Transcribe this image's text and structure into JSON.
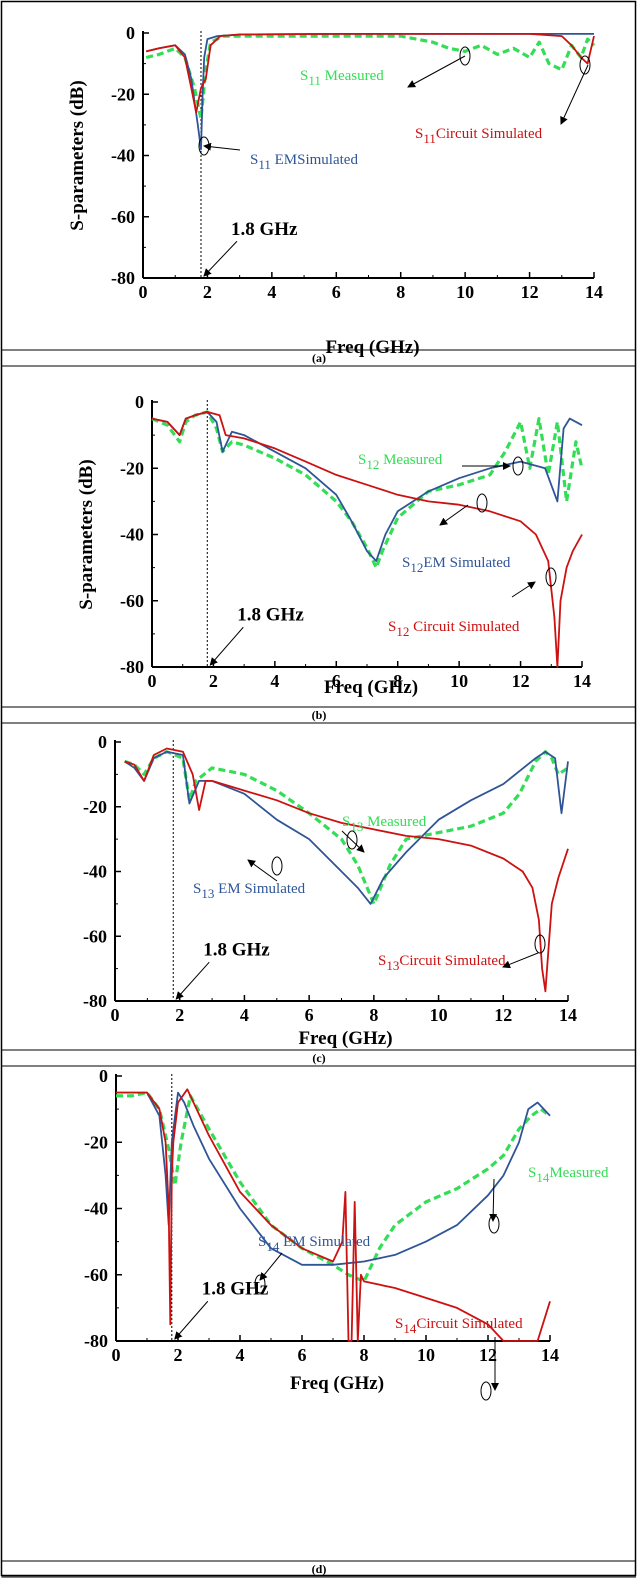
{
  "colors": {
    "measured": "#33dd55",
    "em": "#2f5597",
    "circuit": "#cc1111",
    "frame": "#000000"
  },
  "chart_data": [
    {
      "type": "line",
      "caption": "(a)",
      "xlabel": "Freq (GHz)",
      "ylabel": "S-parameters (dB)",
      "xlim": [
        0,
        14
      ],
      "ylim": [
        -80,
        0
      ],
      "xticks": [
        "0",
        "2",
        "4",
        "6",
        "8",
        "10",
        "12",
        "14"
      ],
      "yticks": [
        "0",
        "-20",
        "-40",
        "-60",
        "-80"
      ],
      "marker": {
        "x": 1.8,
        "label": "1.8 GHz"
      },
      "series": [
        {
          "name": "S11 Measured",
          "sub": "11",
          "pre": "S",
          "post": " Measured",
          "style": "measured",
          "x": [
            0.1,
            0.5,
            1.0,
            1.3,
            1.6,
            1.8,
            1.95,
            2.1,
            2.5,
            3,
            4,
            6,
            8,
            9,
            9.5,
            10,
            10.5,
            11,
            11.5,
            12,
            12.3,
            12.6,
            13,
            13.3,
            13.6,
            13.8,
            14
          ],
          "y": [
            -8,
            -7,
            -5,
            -8,
            -18,
            -28,
            -12,
            -3,
            -1,
            -1,
            -1,
            -1,
            -1,
            -3,
            -5,
            -6,
            -4,
            -7,
            -5,
            -8,
            -3,
            -10,
            -12,
            -4,
            -8,
            -2,
            -4
          ]
        },
        {
          "name": "S11 EM Simulated",
          "sub": "11",
          "pre": "S",
          "post": " EMSimulated",
          "style": "em",
          "x": [
            0.1,
            0.5,
            1.0,
            1.3,
            1.5,
            1.7,
            1.8,
            1.85,
            1.9,
            2.0,
            2.3,
            3,
            6,
            10,
            13.6,
            13.7,
            13.8,
            14
          ],
          "y": [
            -6,
            -5,
            -4,
            -7,
            -15,
            -30,
            -38,
            -20,
            -8,
            -2,
            -1,
            -0.5,
            -0.3,
            -0.3,
            -0.3,
            -0.3,
            -0.3,
            -0.3
          ]
        },
        {
          "name": "S11 Circuit Simulated",
          "sub": "11",
          "pre": "S",
          "post": "Circuit Simulated",
          "style": "circuit",
          "x": [
            0.1,
            0.5,
            1.0,
            1.3,
            1.5,
            1.65,
            1.8,
            1.95,
            2.1,
            2.4,
            3,
            6,
            10,
            12,
            13,
            13.3,
            13.6,
            13.8,
            14
          ],
          "y": [
            -6,
            -5,
            -4,
            -8,
            -18,
            -26,
            -18,
            -15,
            -4,
            -1,
            -0.5,
            -0.3,
            -0.3,
            -0.3,
            -1,
            -4,
            -8,
            -10,
            -1
          ]
        }
      ],
      "annotations": [
        {
          "pre": "S",
          "sub": "11",
          "post": " Measured",
          "style": "measured"
        },
        {
          "pre": "S",
          "sub": "11",
          "post": "Circuit Simulated",
          "style": "circuit"
        },
        {
          "pre": "S",
          "sub": "11",
          "post": " EMSimulated",
          "style": "em"
        }
      ]
    },
    {
      "type": "line",
      "caption": "(b)",
      "xlabel": "Freq (GHz)",
      "ylabel": "S-parameters (dB)",
      "xlim": [
        0,
        14
      ],
      "ylim": [
        -80,
        0
      ],
      "xticks": [
        "0",
        "2",
        "4",
        "6",
        "8",
        "10",
        "12",
        "14"
      ],
      "yticks": [
        "0",
        "-20",
        "-40",
        "-60",
        "-80"
      ],
      "marker": {
        "x": 1.8,
        "label": "1.8 GHz"
      },
      "series": [
        {
          "name": "S12 Measured",
          "style": "measured",
          "x": [
            0,
            0.5,
            0.9,
            1.1,
            1.4,
            1.8,
            2.1,
            2.3,
            2.6,
            3,
            4,
            5,
            6,
            6.5,
            7,
            7.3,
            7.5,
            8,
            9,
            10,
            11,
            11.5,
            12,
            12.3,
            12.6,
            12.9,
            13.2,
            13.5,
            13.8,
            14
          ],
          "y": [
            -5,
            -7,
            -12,
            -6,
            -4,
            -3,
            -8,
            -15,
            -12,
            -13,
            -17,
            -22,
            -30,
            -36,
            -44,
            -50,
            -45,
            -35,
            -27,
            -25,
            -22,
            -15,
            -6,
            -20,
            -5,
            -22,
            -6,
            -30,
            -12,
            -20
          ]
        },
        {
          "name": "S12 EM Simulated",
          "style": "em",
          "x": [
            0,
            0.5,
            0.9,
            1.1,
            1.4,
            1.8,
            2.1,
            2.3,
            2.6,
            3,
            4,
            5,
            6,
            6.5,
            7,
            7.3,
            7.6,
            8,
            9,
            10,
            11,
            12,
            12.8,
            13.2,
            13.4,
            13.6,
            14
          ],
          "y": [
            -5,
            -6,
            -10,
            -5,
            -4,
            -3,
            -6,
            -15,
            -9,
            -10,
            -15,
            -20,
            -28,
            -36,
            -45,
            -48,
            -40,
            -33,
            -27,
            -23,
            -20,
            -18,
            -20,
            -30,
            -8,
            -5,
            -7
          ]
        },
        {
          "name": "S12 Circuit Simulated",
          "style": "circuit",
          "x": [
            0,
            0.5,
            0.9,
            1.1,
            1.4,
            1.8,
            2.2,
            2.4,
            3,
            4,
            5,
            6,
            7,
            8,
            9,
            10,
            11,
            12,
            12.5,
            12.9,
            13.1,
            13.2,
            13.3,
            13.5,
            13.7,
            14
          ],
          "y": [
            -5,
            -6,
            -10,
            -5,
            -4,
            -3,
            -4,
            -10,
            -11,
            -14,
            -18,
            -22,
            -25,
            -28,
            -30,
            -31,
            -33,
            -36,
            -40,
            -48,
            -65,
            -80,
            -60,
            -50,
            -45,
            -40
          ]
        }
      ],
      "annotations": [
        {
          "pre": "S",
          "sub": "12",
          "post": " Measured",
          "style": "measured"
        },
        {
          "pre": "S",
          "sub": "12",
          "post": "EM Simulated",
          "style": "em"
        },
        {
          "pre": "S",
          "sub": "12",
          "post": " Circuit Simulated",
          "style": "circuit"
        }
      ]
    },
    {
      "type": "line",
      "caption": "(c)",
      "xlabel": "Freq (GHz)",
      "ylabel": "",
      "xlim": [
        0,
        14
      ],
      "ylim": [
        -80,
        0
      ],
      "xticks": [
        "0",
        "2",
        "4",
        "6",
        "8",
        "10",
        "12",
        "14"
      ],
      "yticks": [
        "0",
        "-20",
        "-40",
        "-60",
        "-80"
      ],
      "marker": {
        "x": 1.8,
        "label": "1.8 GHz"
      },
      "series": [
        {
          "name": "S13 Measured",
          "style": "measured",
          "x": [
            0.3,
            0.6,
            0.9,
            1.2,
            1.6,
            2.1,
            2.3,
            2.5,
            3,
            4,
            5,
            6,
            7,
            7.5,
            8,
            8.5,
            9,
            10,
            11,
            12,
            12.5,
            13,
            13.3,
            13.5,
            13.7,
            14
          ],
          "y": [
            -6,
            -7,
            -10,
            -5,
            -3,
            -5,
            -18,
            -12,
            -8,
            -10,
            -15,
            -22,
            -30,
            -38,
            -50,
            -38,
            -30,
            -28,
            -26,
            -22,
            -16,
            -6,
            -3,
            -5,
            -10,
            -8
          ]
        },
        {
          "name": "S13 EM Simulated",
          "style": "em",
          "x": [
            0.3,
            0.6,
            0.9,
            1.2,
            1.6,
            2.1,
            2.3,
            2.6,
            3,
            4,
            5,
            6,
            7,
            7.5,
            7.9,
            8.3,
            9,
            10,
            11,
            12,
            12.5,
            13,
            13.3,
            13.6,
            13.8,
            14
          ],
          "y": [
            -6,
            -8,
            -12,
            -5,
            -3,
            -4,
            -19,
            -12,
            -12,
            -16,
            -24,
            -30,
            -40,
            -45,
            -50,
            -42,
            -34,
            -24,
            -18,
            -13,
            -9,
            -5,
            -3,
            -5,
            -22,
            -6
          ]
        },
        {
          "name": "S13 Circuit Simulated",
          "style": "circuit",
          "x": [
            0.3,
            0.6,
            0.9,
            1.2,
            1.6,
            2.1,
            2.4,
            2.6,
            2.8,
            3,
            4,
            5,
            6,
            7,
            8,
            9,
            10,
            11,
            12,
            12.6,
            12.9,
            13.1,
            13.2,
            13.3,
            13.5,
            13.7,
            14
          ],
          "y": [
            -6,
            -7,
            -12,
            -4,
            -2,
            -3,
            -10,
            -21,
            -12,
            -12,
            -15,
            -18,
            -22,
            -25,
            -27,
            -29,
            -30,
            -32,
            -36,
            -40,
            -45,
            -55,
            -70,
            -77,
            -50,
            -42,
            -33
          ]
        }
      ],
      "annotations": [
        {
          "pre": "S",
          "sub": "13",
          "post": " Measured",
          "style": "measured"
        },
        {
          "pre": "S",
          "sub": "13",
          "post": " EM Simulated",
          "style": "em"
        },
        {
          "pre": "S",
          "sub": "13",
          "post": "Circuit Simulated",
          "style": "circuit"
        }
      ]
    },
    {
      "type": "line",
      "caption": "(d)",
      "xlabel": "Freq (GHz)",
      "ylabel": "",
      "xlim": [
        0,
        14
      ],
      "ylim": [
        -80,
        0
      ],
      "xticks": [
        "0",
        "2",
        "4",
        "6",
        "8",
        "10",
        "12",
        "14"
      ],
      "yticks": [
        "0",
        "-20",
        "-40",
        "-60",
        "-80"
      ],
      "marker": {
        "x": 1.8,
        "label": "1.8 GHz"
      },
      "series": [
        {
          "name": "S14 Measured",
          "style": "measured",
          "x": [
            0,
            0.5,
            1,
            1.4,
            1.7,
            1.9,
            2.1,
            2.4,
            3,
            4,
            5,
            6,
            7,
            7.5,
            8,
            8.5,
            9,
            10,
            11,
            12,
            12.5,
            13,
            13.4,
            13.7,
            14
          ],
          "y": [
            -6,
            -6,
            -5,
            -10,
            -22,
            -33,
            -20,
            -6,
            -16,
            -32,
            -45,
            -52,
            -57,
            -60,
            -62,
            -52,
            -45,
            -38,
            -34,
            -28,
            -24,
            -16,
            -12,
            -10,
            -12
          ]
        },
        {
          "name": "S14 EM Simulated",
          "style": "em",
          "x": [
            0,
            0.5,
            1,
            1.4,
            1.6,
            1.7,
            1.8,
            2.0,
            2.2,
            2.5,
            3,
            4,
            5,
            6,
            7,
            8,
            9,
            10,
            11,
            12,
            12.5,
            13,
            13.3,
            13.6,
            14
          ],
          "y": [
            -5,
            -5,
            -5,
            -12,
            -30,
            -45,
            -20,
            -5,
            -8,
            -15,
            -25,
            -40,
            -52,
            -57,
            -57,
            -56,
            -54,
            -50,
            -45,
            -36,
            -30,
            -20,
            -10,
            -8,
            -12
          ]
        },
        {
          "name": "S14 Circuit Simulated",
          "style": "circuit",
          "x": [
            0,
            0.5,
            1,
            1.4,
            1.6,
            1.7,
            1.75,
            1.8,
            1.85,
            2.0,
            2.3,
            3,
            4,
            5,
            6,
            7,
            7.3,
            7.4,
            7.5,
            7.6,
            7.7,
            7.8,
            7.9,
            8,
            9,
            10,
            11,
            12,
            12.5,
            13.6,
            14
          ],
          "y": [
            -5,
            -5,
            -5,
            -10,
            -20,
            -40,
            -75,
            -30,
            -20,
            -8,
            -4,
            -18,
            -35,
            -45,
            -52,
            -56,
            -50,
            -35,
            -80,
            -80,
            -38,
            -80,
            -60,
            -62,
            -64,
            -67,
            -70,
            -75,
            -80,
            -80,
            -68
          ]
        }
      ],
      "annotations": [
        {
          "pre": "S",
          "sub": "14",
          "post": "Measured",
          "style": "measured"
        },
        {
          "pre": "S",
          "sub": "14",
          "post": " EM Simulated",
          "style": "em"
        },
        {
          "pre": "S",
          "sub": "14",
          "post": "Circuit Simulated",
          "style": "circuit"
        }
      ]
    }
  ]
}
